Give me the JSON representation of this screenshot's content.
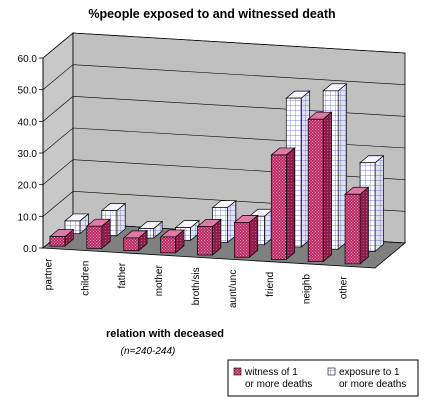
{
  "chart_data": {
    "type": "bar",
    "title": "%people exposed to and witnessed  death",
    "xlabel": "relation with deceased",
    "note": "(n=240-244)",
    "ylim": [
      0,
      60
    ],
    "yticks": [
      "0.0",
      "10.0",
      "20.0",
      "30.0",
      "40.0",
      "50.0",
      "60.0"
    ],
    "categories": [
      "partner",
      "children",
      "father",
      "mother",
      "broth/sis",
      "aunt/unc",
      "friend",
      "neighb",
      "other"
    ],
    "series": [
      {
        "name": "witness of 1 or more deaths",
        "values": [
          3,
          7,
          4,
          5,
          9,
          11,
          33,
          45,
          22
        ],
        "color": "#c0306a",
        "fill": "dots"
      },
      {
        "name": "exposure to 1 or more deaths",
        "values": [
          4,
          8,
          3,
          4,
          11,
          9,
          47,
          50,
          28
        ],
        "color": "#ffffff",
        "fill": "grid"
      }
    ],
    "grid": true,
    "view": "3d",
    "legend_position": "bottom-right"
  }
}
